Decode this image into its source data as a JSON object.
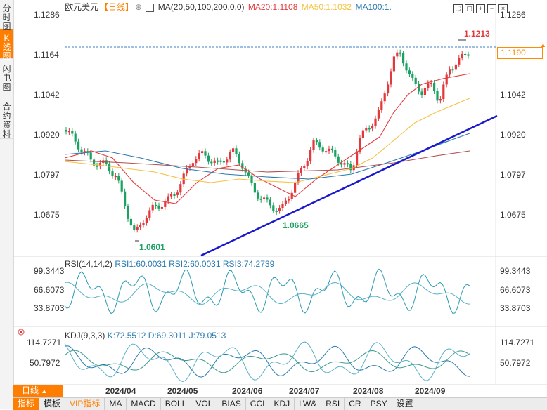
{
  "left_tabs": [
    {
      "label": "分时图",
      "active": false
    },
    {
      "label": "K线图",
      "active": true
    },
    {
      "label": "闪电图",
      "active": false
    },
    {
      "label": "合约资料",
      "active": false
    }
  ],
  "header": {
    "symbol": "欧元美元",
    "period": "【日线】",
    "ma_label": "MA(20,50,100,200,0,0)",
    "ma20": "MA20:1.1108",
    "ma50": "MA50:1.1032",
    "ma100": "MA100:1."
  },
  "price_axis": [
    "1.1286",
    "1.1164",
    "1.1042",
    "1.0920",
    "1.0797",
    "1.0675"
  ],
  "current_price": "1.1190",
  "annotations": {
    "high": "1.1213",
    "low1": "1.0601",
    "low2": "1.0665"
  },
  "rsi": {
    "label": "RSI(14,14,2)",
    "rsi1": "RSI1:60.0031",
    "rsi2": "RSI2:60.0031",
    "rsi3": "RSI3:74.2739",
    "axis": [
      "99.3443",
      "66.6073",
      "33.8703"
    ]
  },
  "kdj": {
    "label": "KDJ(9,3,3)",
    "k": "K:72.5512",
    "d": "D:69.3011",
    "j": "J:79.0513",
    "axis": [
      "114.7271",
      "50.7972"
    ]
  },
  "dates": [
    "2024/04",
    "2024/05",
    "2024/06",
    "2024/07",
    "2024/08",
    "2024/09"
  ],
  "period_button": "日线",
  "bottom_nav": [
    "指标",
    "模板",
    "VIP指标",
    "MA",
    "MACD",
    "BOLL",
    "VOL",
    "BIAS",
    "CCI",
    "KDJ",
    "LW&",
    "RSI",
    "CR",
    "PSY",
    "设置"
  ],
  "colors": {
    "up": "#e4393c",
    "down": "#1aa260",
    "ma20": "#e4393c",
    "ma50": "#f5c242",
    "ma100": "#2a7ab0",
    "ma200": "#b05050",
    "trend": "#1a1acc",
    "accent": "#ff7e00"
  },
  "chart_data": {
    "type": "candlestick",
    "y_range": [
      1.0601,
      1.1286
    ],
    "first_candle_date": "2024/03",
    "series": [
      {
        "name": "MA20",
        "color": "#e4393c"
      },
      {
        "name": "MA50",
        "color": "#f5c242"
      },
      {
        "name": "MA100",
        "color": "#2a7ab0"
      }
    ]
  }
}
